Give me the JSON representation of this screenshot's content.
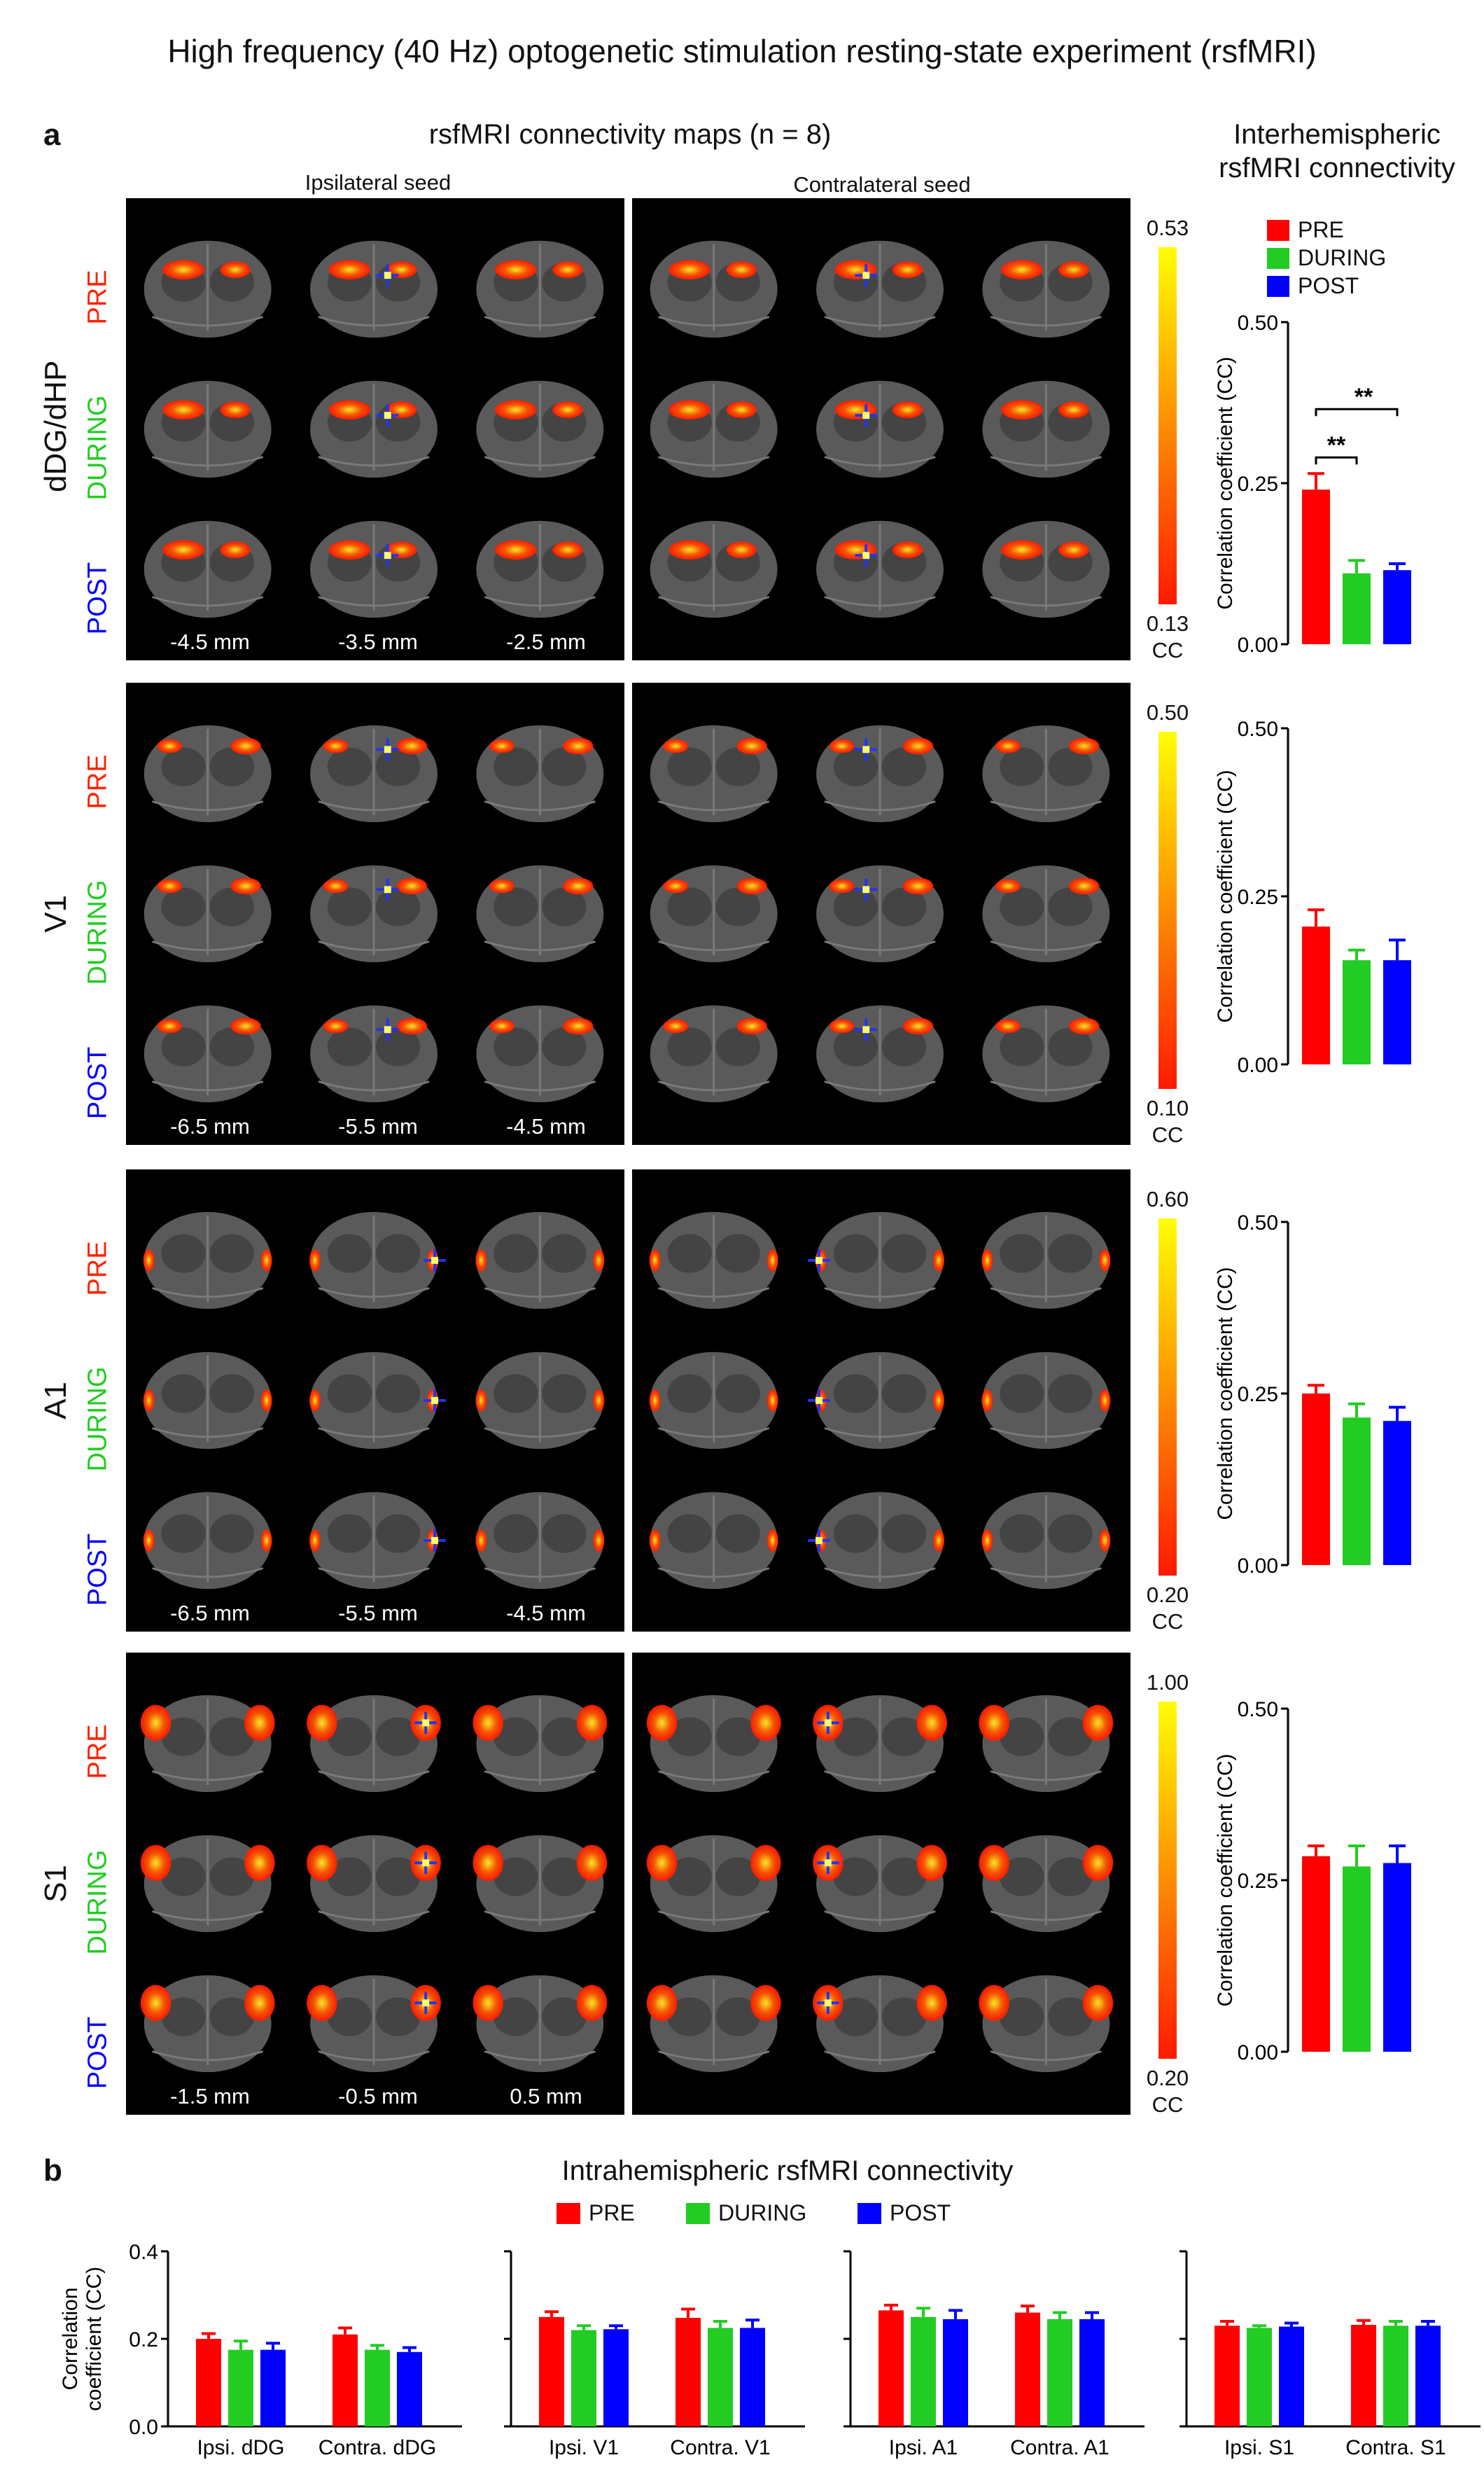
{
  "title": "High frequency (40 Hz) optogenetic stimulation resting-state experiment (rsfMRI)",
  "panel_a": {
    "label": "a",
    "maps_header": "rsfMRI connectivity maps (n = 8)",
    "ipsi_header": "Ipsilateral seed",
    "contra_header": "Contralateral seed",
    "inter_header_1": "Interhemispheric",
    "inter_header_2": "rsfMRI connectivity",
    "legend": [
      "PRE",
      "DURING",
      "POST"
    ],
    "row_labels": [
      "PRE",
      "DURING",
      "POST"
    ],
    "cc_unit": "CC",
    "regions": [
      {
        "name": "dDG/dHP",
        "slices": [
          "-4.5 mm",
          "-3.5 mm",
          "-2.5 mm"
        ],
        "cb_max": "0.53",
        "cb_min": "0.13"
      },
      {
        "name": "V1",
        "slices": [
          "-6.5 mm",
          "-5.5 mm",
          "-4.5 mm"
        ],
        "cb_max": "0.50",
        "cb_min": "0.10"
      },
      {
        "name": "A1",
        "slices": [
          "-6.5 mm",
          "-5.5 mm",
          "-4.5 mm"
        ],
        "cb_max": "0.60",
        "cb_min": "0.20"
      },
      {
        "name": "S1",
        "slices": [
          "-1.5 mm",
          "-0.5 mm",
          "0.5 mm"
        ],
        "cb_max": "1.00",
        "cb_min": "0.20"
      }
    ]
  },
  "panel_b": {
    "label": "b",
    "header": "Intrahemispheric rsfMRI connectivity",
    "legend": [
      "PRE",
      "DURING",
      "POST"
    ]
  },
  "colors": {
    "pre": "#ff0000",
    "during": "#22cc22",
    "post": "#0000ff",
    "cb_low": "#ff1a00",
    "cb_high": "#ffff00"
  },
  "chart_data": [
    {
      "type": "bar",
      "categories": [
        "PRE",
        "DURING",
        "POST"
      ],
      "values": [
        0.24,
        0.11,
        0.115
      ],
      "errors": [
        0.025,
        0.02,
        0.01
      ],
      "ylabel": "Correlation coefficient (CC)",
      "ylim": [
        0,
        0.5
      ],
      "yticks": [
        "0.00",
        "0.25",
        "0.50"
      ],
      "annotations": [
        "**",
        "**"
      ]
    },
    {
      "type": "bar",
      "categories": [
        "PRE",
        "DURING",
        "POST"
      ],
      "values": [
        0.205,
        0.155,
        0.155
      ],
      "errors": [
        0.025,
        0.015,
        0.03
      ],
      "ylabel": "Correlation coefficient (CC)",
      "ylim": [
        0,
        0.5
      ],
      "yticks": [
        "0.00",
        "0.25",
        "0.50"
      ]
    },
    {
      "type": "bar",
      "categories": [
        "PRE",
        "DURING",
        "POST"
      ],
      "values": [
        0.25,
        0.215,
        0.21
      ],
      "errors": [
        0.012,
        0.02,
        0.02
      ],
      "ylabel": "Correlation coefficient (CC)",
      "ylim": [
        0,
        0.5
      ],
      "yticks": [
        "0.00",
        "0.25",
        "0.50"
      ]
    },
    {
      "type": "bar",
      "categories": [
        "PRE",
        "DURING",
        "POST"
      ],
      "values": [
        0.285,
        0.27,
        0.275
      ],
      "errors": [
        0.015,
        0.03,
        0.025
      ],
      "ylabel": "Correlation coefficient (CC)",
      "ylim": [
        0,
        0.5
      ],
      "yticks": [
        "0.00",
        "0.25",
        "0.50"
      ]
    },
    {
      "type": "bar",
      "categories": [
        "Ipsi. dDG",
        "Contra. dDG"
      ],
      "series": [
        {
          "name": "PRE",
          "values": [
            0.2,
            0.21
          ],
          "errors": [
            0.012,
            0.015
          ]
        },
        {
          "name": "DURING",
          "values": [
            0.175,
            0.175
          ],
          "errors": [
            0.02,
            0.01
          ]
        },
        {
          "name": "POST",
          "values": [
            0.175,
            0.17
          ],
          "errors": [
            0.015,
            0.01
          ]
        }
      ],
      "ylabel": "Correlation coefficient (CC)",
      "ylim": [
        0,
        0.4
      ],
      "yticks": [
        "0.0",
        "0.2",
        "0.4"
      ]
    },
    {
      "type": "bar",
      "categories": [
        "Ipsi. V1",
        "Contra. V1"
      ],
      "series": [
        {
          "name": "PRE",
          "values": [
            0.25,
            0.248
          ],
          "errors": [
            0.012,
            0.02
          ]
        },
        {
          "name": "DURING",
          "values": [
            0.22,
            0.225
          ],
          "errors": [
            0.01,
            0.015
          ]
        },
        {
          "name": "POST",
          "values": [
            0.222,
            0.225
          ],
          "errors": [
            0.008,
            0.018
          ]
        }
      ],
      "ylim": [
        0,
        0.4
      ]
    },
    {
      "type": "bar",
      "categories": [
        "Ipsi. A1",
        "Contra. A1"
      ],
      "series": [
        {
          "name": "PRE",
          "values": [
            0.265,
            0.26
          ],
          "errors": [
            0.012,
            0.015
          ]
        },
        {
          "name": "DURING",
          "values": [
            0.25,
            0.245
          ],
          "errors": [
            0.02,
            0.015
          ]
        },
        {
          "name": "POST",
          "values": [
            0.245,
            0.245
          ],
          "errors": [
            0.02,
            0.015
          ]
        }
      ],
      "ylim": [
        0,
        0.4
      ]
    },
    {
      "type": "bar",
      "categories": [
        "Ipsi. S1",
        "Contra. S1"
      ],
      "series": [
        {
          "name": "PRE",
          "values": [
            0.23,
            0.232
          ],
          "errors": [
            0.01,
            0.01
          ]
        },
        {
          "name": "DURING",
          "values": [
            0.225,
            0.23
          ],
          "errors": [
            0.005,
            0.01
          ]
        },
        {
          "name": "POST",
          "values": [
            0.228,
            0.23
          ],
          "errors": [
            0.008,
            0.01
          ]
        }
      ],
      "ylim": [
        0,
        0.4
      ]
    }
  ]
}
